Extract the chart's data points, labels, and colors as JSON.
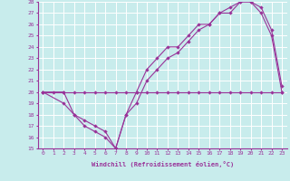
{
  "xlabel": "Windchill (Refroidissement éolien,°C)",
  "bg_color": "#c8ecec",
  "grid_color": "#ffffff",
  "line_color": "#993399",
  "xlim": [
    -0.5,
    23.5
  ],
  "ylim": [
    15,
    28
  ],
  "yticks": [
    15,
    16,
    17,
    18,
    19,
    20,
    21,
    22,
    23,
    24,
    25,
    26,
    27,
    28
  ],
  "xticks": [
    0,
    1,
    2,
    3,
    4,
    5,
    6,
    7,
    8,
    9,
    10,
    11,
    12,
    13,
    14,
    15,
    16,
    17,
    18,
    19,
    20,
    21,
    22,
    23
  ],
  "line1_x": [
    0,
    1,
    2,
    3,
    4,
    5,
    6,
    7,
    8,
    9,
    10,
    11,
    12,
    13,
    14,
    15,
    16,
    17,
    18,
    19,
    20,
    21,
    22,
    23
  ],
  "line1_y": [
    20,
    20,
    20,
    20,
    20,
    20,
    20,
    20,
    20,
    20,
    20,
    20,
    20,
    20,
    20,
    20,
    20,
    20,
    20,
    20,
    20,
    20,
    20,
    20
  ],
  "line2_x": [
    0,
    2,
    3,
    4,
    5,
    6,
    7,
    8,
    9,
    10,
    11,
    12,
    13,
    14,
    15,
    16,
    17,
    18,
    19,
    20,
    21,
    22,
    23
  ],
  "line2_y": [
    20,
    19,
    18,
    17,
    16.5,
    16,
    15,
    18,
    19,
    21,
    22,
    23,
    23.5,
    24.5,
    25.5,
    26,
    27,
    27,
    28,
    28,
    27.5,
    25.5,
    20.5
  ],
  "line3_x": [
    0,
    2,
    3,
    4,
    5,
    6,
    7,
    8,
    9,
    10,
    11,
    12,
    13,
    14,
    15,
    16,
    17,
    18,
    19,
    20,
    21,
    22,
    23
  ],
  "line3_y": [
    20,
    20,
    18,
    17.5,
    17,
    16.5,
    15,
    18,
    20,
    22,
    23,
    24,
    24,
    25,
    26,
    26,
    27,
    27.5,
    28,
    28,
    27,
    25,
    20
  ]
}
